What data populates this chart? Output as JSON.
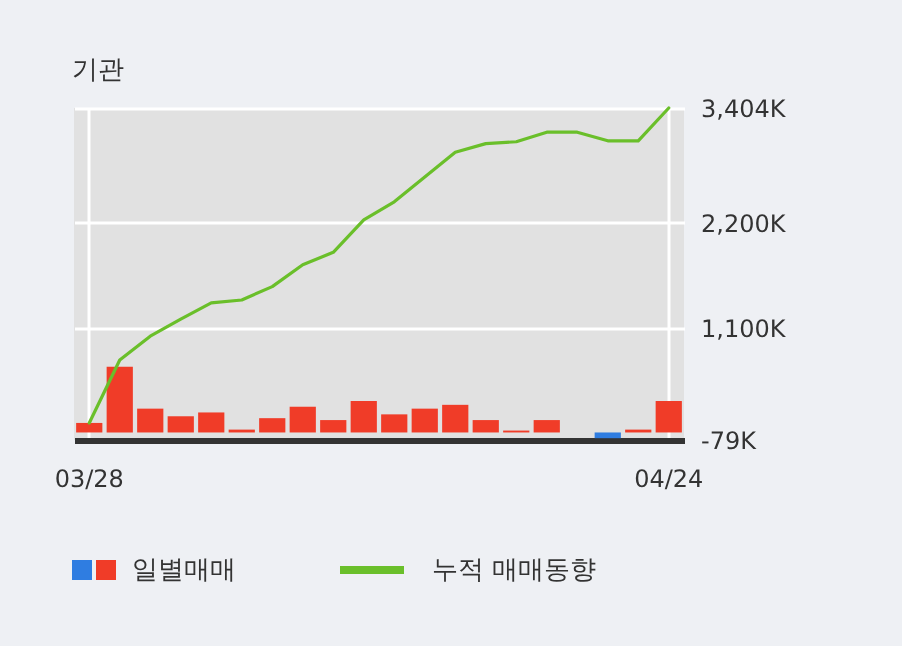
{
  "chart_data": {
    "type": "bar",
    "title": "기관",
    "categories": [
      "03/28",
      null,
      null,
      null,
      null,
      null,
      null,
      null,
      null,
      null,
      null,
      null,
      null,
      null,
      null,
      null,
      null,
      null,
      null,
      "04/24"
    ],
    "series": [
      {
        "name": "일별매매",
        "color": "#f03c28",
        "colors": [
          "#f03c28",
          "#f03c28",
          "#f03c28",
          "#f03c28",
          "#f03c28",
          "#f03c28",
          "#f03c28",
          "#f03c28",
          "#f03c28",
          "#f03c28",
          "#f03c28",
          "#f03c28",
          "#f03c28",
          "#f03c28",
          "#f03c28",
          "#f03c28",
          "#f03c28",
          "#2f7de1",
          "#f03c28",
          "#f03c28"
        ],
        "values": [
          100,
          690,
          250,
          170,
          210,
          30,
          150,
          270,
          130,
          330,
          190,
          250,
          290,
          130,
          20,
          130,
          0,
          -60,
          30,
          330
        ]
      },
      {
        "name": "누적 매매동향",
        "type": "line",
        "color": "#6abf2a",
        "values": [
          100,
          760,
          1010,
          1190,
          1360,
          1390,
          1530,
          1760,
          1890,
          2230,
          2420,
          2680,
          2940,
          3030,
          3050,
          3150,
          3150,
          3060,
          3060,
          3404
        ]
      }
    ],
    "ylim": [
      -79,
      3404
    ],
    "yticks": [
      {
        "value": -79,
        "label": "-79K"
      },
      {
        "value": 1100,
        "label": "1,100K"
      },
      {
        "value": 2200,
        "label": "2,200K"
      },
      {
        "value": 3404,
        "label": "3,404K"
      }
    ],
    "grid": true,
    "legend": "bottom"
  }
}
